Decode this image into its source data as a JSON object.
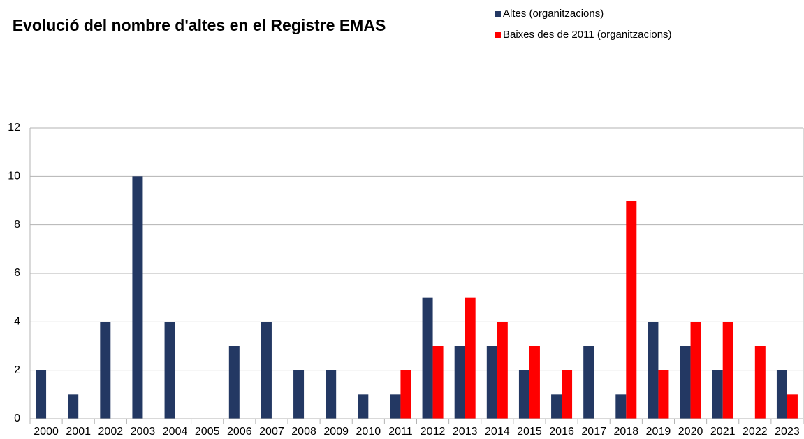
{
  "chart_data": {
    "type": "bar",
    "title": "Evolució del nombre d'altes en el Registre EMAS",
    "categories": [
      "2000",
      "2001",
      "2002",
      "2003",
      "2004",
      "2005",
      "2006",
      "2007",
      "2008",
      "2009",
      "2010",
      "2011",
      "2012",
      "2013",
      "2014",
      "2015",
      "2016",
      "2017",
      "2018",
      "2019",
      "2020",
      "2021",
      "2022",
      "2023"
    ],
    "series": [
      {
        "name": "Altes (organitzacions)",
        "color": "#233863",
        "values": [
          2,
          1,
          4,
          10,
          4,
          0,
          3,
          4,
          2,
          2,
          1,
          1,
          5,
          3,
          3,
          2,
          1,
          3,
          1,
          4,
          3,
          2,
          0,
          2
        ]
      },
      {
        "name": "Baixes des de 2011 (organitzacions)",
        "color": "#ff0000",
        "values": [
          null,
          null,
          null,
          null,
          null,
          null,
          null,
          null,
          null,
          null,
          null,
          2,
          3,
          5,
          4,
          3,
          2,
          0,
          9,
          2,
          4,
          4,
          3,
          1
        ]
      }
    ],
    "ylim": [
      0,
      12
    ],
    "yticks": [
      0,
      2,
      4,
      6,
      8,
      10,
      12
    ],
    "grid": true,
    "legend": "top-right"
  }
}
